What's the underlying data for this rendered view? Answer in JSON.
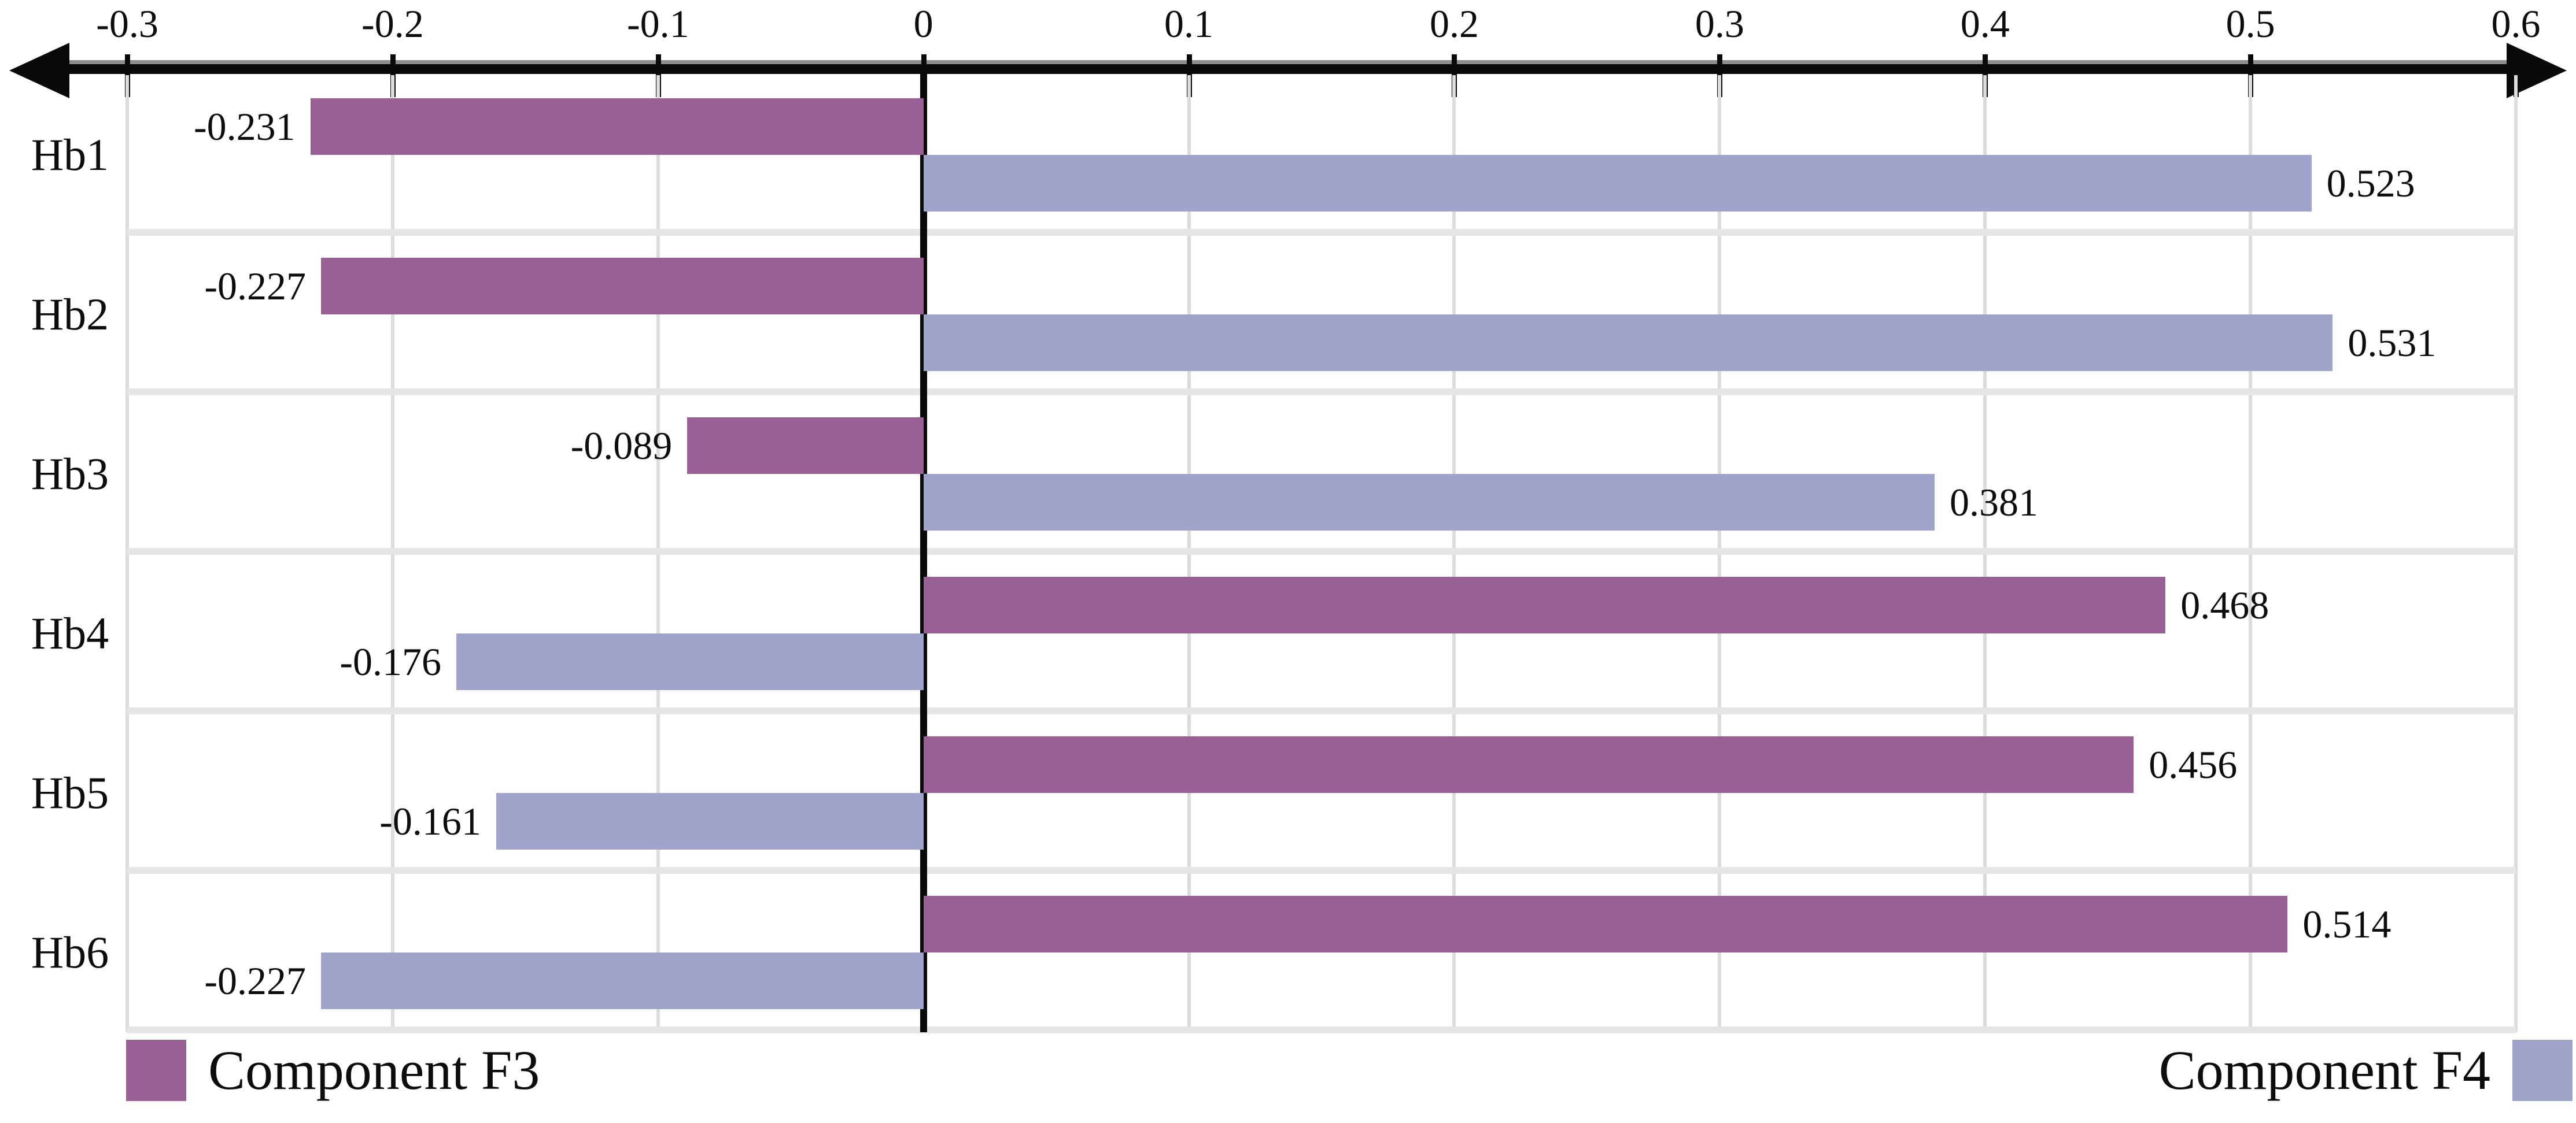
{
  "chart_data": {
    "type": "bar",
    "orientation": "horizontal",
    "title": "",
    "categories": [
      "Hb1",
      "Hb2",
      "Hb3",
      "Hb4",
      "Hb5",
      "Hb6"
    ],
    "series": [
      {
        "name": "Component F3",
        "color": "#996095",
        "values": [
          -0.231,
          -0.227,
          -0.089,
          0.468,
          0.456,
          0.514
        ],
        "labels": [
          "-0.231",
          "-0.227",
          "-0.089",
          "0.468",
          "0.456",
          "0.514"
        ]
      },
      {
        "name": "Component F4",
        "color": "#a0a4ca",
        "values": [
          0.523,
          0.531,
          0.381,
          -0.176,
          -0.161,
          -0.227
        ],
        "labels": [
          "0.523",
          "0.531",
          "0.381",
          "-0.176",
          "-0.161",
          "-0.227"
        ]
      }
    ],
    "x_axis": {
      "min": -0.3,
      "max": 0.6,
      "ticks": [
        {
          "label": "-0.3",
          "value": -0.3
        },
        {
          "label": "-0.2",
          "value": -0.2
        },
        {
          "label": "-0.1",
          "value": -0.1
        },
        {
          "label": "0",
          "value": 0
        },
        {
          "label": "0.1",
          "value": 0.1
        },
        {
          "label": "0.2",
          "value": 0.2
        },
        {
          "label": "0.3",
          "value": 0.3
        },
        {
          "label": "0.4",
          "value": 0.4
        },
        {
          "label": "0.5",
          "value": 0.5
        },
        {
          "label": "0.6",
          "value": 0.6
        }
      ]
    },
    "grid": true,
    "legend_position": "bottom",
    "legend": {
      "left": {
        "label": "Component F3",
        "swatch_color": "#996095",
        "swatch_side": "left"
      },
      "right": {
        "label": "Component F4",
        "swatch_color": "#a0a4ca",
        "swatch_side": "right"
      }
    },
    "colors": {
      "background": "#ffffff",
      "axis": "#0a0a0a",
      "axis_highlight": "#8f8f8f",
      "gridline": "#dcdcdc",
      "row_separator": "#e6e6e6",
      "zero_line": "#0a0a0a",
      "text": "#0d0d0d"
    }
  }
}
